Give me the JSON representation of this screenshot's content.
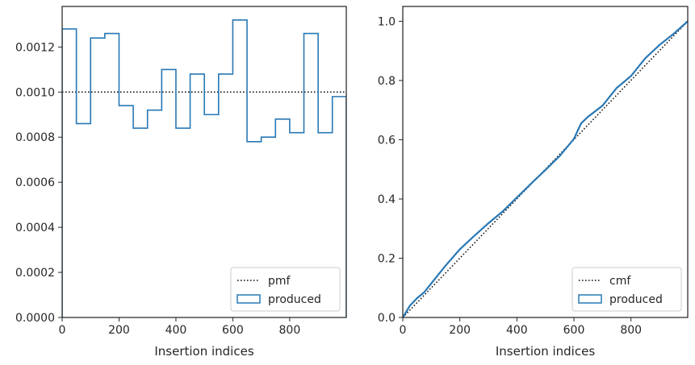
{
  "chart_data": [
    {
      "type": "step",
      "xlabel": "Insertion indices",
      "ylabel": "",
      "xlim": [
        0,
        999
      ],
      "ylim": [
        0,
        0.00138
      ],
      "xticks": [
        0,
        200,
        400,
        600,
        800
      ],
      "xtick_labels": [
        "0",
        "200",
        "400",
        "600",
        "800"
      ],
      "yticks": [
        0,
        0.0002,
        0.0004,
        0.0006,
        0.0008,
        0.001,
        0.0012
      ],
      "ytick_labels": [
        "0.0000",
        "0.0002",
        "0.0004",
        "0.0006",
        "0.0008",
        "0.0010",
        "0.0012"
      ],
      "grid": false,
      "legend": {
        "position": "lower right",
        "entries": [
          "pmf",
          "produced"
        ]
      },
      "series": [
        {
          "name": "pmf",
          "style": "dotted",
          "color": "#000000",
          "x": [
            0,
            999
          ],
          "y": [
            0.001,
            0.001
          ]
        },
        {
          "name": "produced",
          "style": "histogram-step",
          "color": "#2878b5",
          "bin_edges": [
            0,
            50,
            100,
            150,
            200,
            250,
            300,
            350,
            400,
            450,
            500,
            550,
            600,
            650,
            700,
            750,
            800,
            850,
            900,
            950,
            999
          ],
          "values": [
            0.00128,
            0.00086,
            0.00124,
            0.00126,
            0.00094,
            0.00084,
            0.00092,
            0.0011,
            0.00084,
            0.00108,
            0.0009,
            0.00108,
            0.00132,
            0.00078,
            0.0008,
            0.00088,
            0.00082,
            0.00126,
            0.00082,
            0.00098
          ]
        }
      ]
    },
    {
      "type": "line",
      "xlabel": "Insertion indices",
      "ylabel": "",
      "xlim": [
        0,
        999
      ],
      "ylim": [
        0,
        1.05
      ],
      "xticks": [
        0,
        200,
        400,
        600,
        800
      ],
      "xtick_labels": [
        "0",
        "200",
        "400",
        "600",
        "800"
      ],
      "yticks": [
        0,
        0.2,
        0.4,
        0.6,
        0.8,
        1.0
      ],
      "ytick_labels": [
        "0.0",
        "0.2",
        "0.4",
        "0.6",
        "0.8",
        "1.0"
      ],
      "grid": false,
      "legend": {
        "position": "lower right",
        "entries": [
          "cmf",
          "produced"
        ]
      },
      "series": [
        {
          "name": "cmf",
          "style": "dotted",
          "color": "#000000",
          "x": [
            0,
            999
          ],
          "y": [
            0,
            1.0
          ]
        },
        {
          "name": "produced",
          "style": "solid",
          "color": "#2878b5",
          "x": [
            0,
            25,
            50,
            75,
            100,
            150,
            200,
            250,
            300,
            350,
            400,
            450,
            500,
            550,
            600,
            625,
            650,
            700,
            750,
            800,
            850,
            900,
            950,
            999
          ],
          "y": [
            0,
            0.04,
            0.065,
            0.085,
            0.115,
            0.175,
            0.23,
            0.275,
            0.318,
            0.358,
            0.405,
            0.452,
            0.498,
            0.545,
            0.603,
            0.655,
            0.678,
            0.715,
            0.775,
            0.815,
            0.875,
            0.92,
            0.958,
            1.0
          ]
        }
      ]
    }
  ]
}
